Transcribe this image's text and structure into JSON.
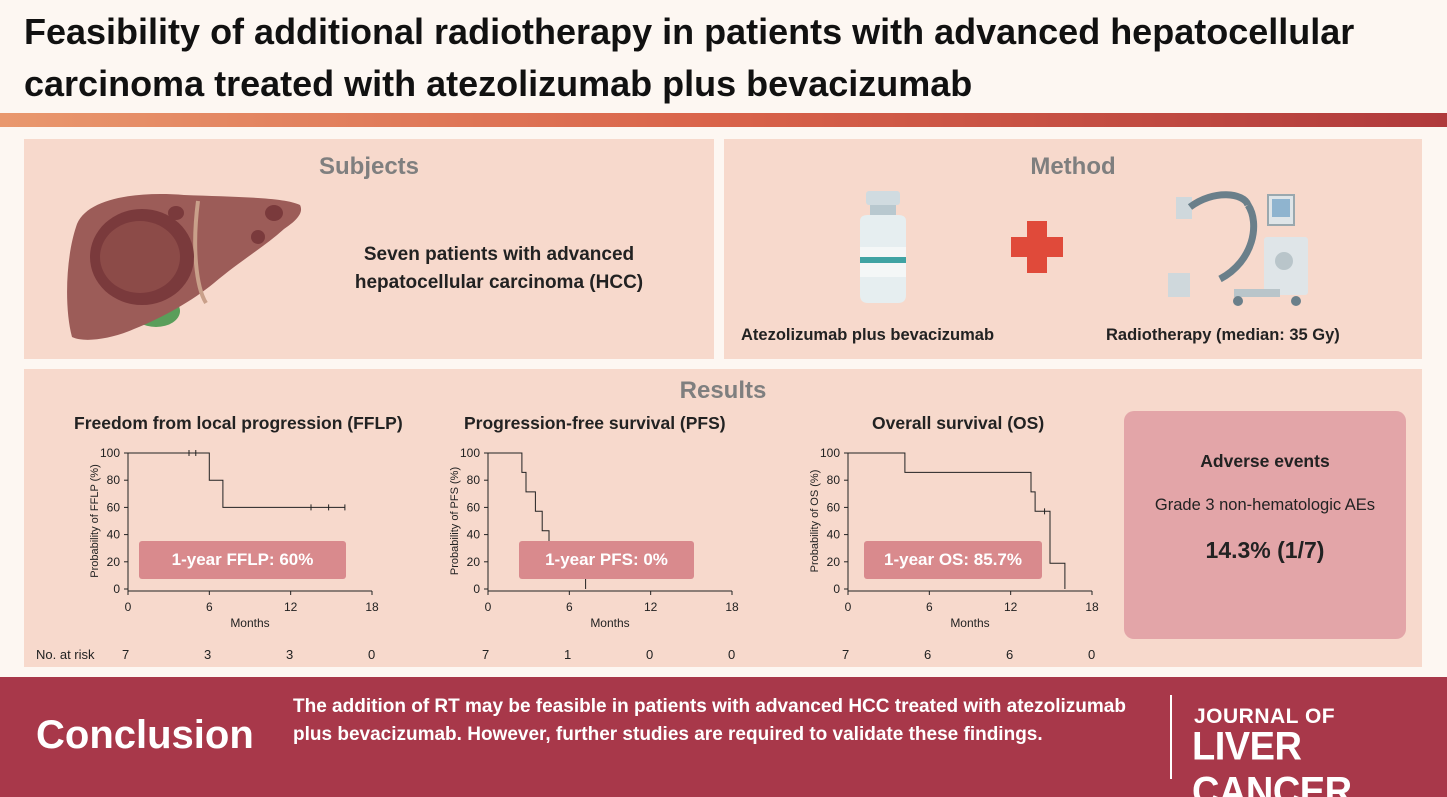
{
  "title": "Feasibility of additional radiotherapy in patients with advanced hepatocellular carcinoma treated with atezolizumab plus bevacizumab",
  "subjects": {
    "heading": "Subjects",
    "text": "Seven patients with advanced hepatocellular carcinoma (HCC)"
  },
  "method": {
    "heading": "Method",
    "drug_caption": "Atezolizumab plus bevacizumab",
    "rt_caption": "Radiotherapy (median: 35 Gy)"
  },
  "results": {
    "heading": "Results",
    "risk_label": "No. at risk",
    "adverse": {
      "title": "Adverse events",
      "subtitle": "Grade 3 non-hematologic AEs",
      "value": "14.3% (1/7)"
    }
  },
  "chart_data": [
    {
      "type": "line",
      "title": "Freedom from local progression (FFLP)",
      "xlabel": "Months",
      "ylabel": "Probability of FFLP (%)",
      "xlim": [
        0,
        18
      ],
      "ylim": [
        0,
        100
      ],
      "xticks": [
        0,
        6,
        12,
        18
      ],
      "yticks": [
        0,
        20,
        40,
        60,
        80,
        100
      ],
      "x": [
        0,
        6,
        6,
        7,
        7,
        16
      ],
      "y": [
        100,
        100,
        80,
        80,
        60,
        60
      ],
      "censored": [
        [
          4.5,
          100
        ],
        [
          5,
          100
        ],
        [
          13.5,
          60
        ],
        [
          14.8,
          60
        ],
        [
          16,
          60
        ]
      ],
      "annotation": "1-year FFLP: 60%",
      "at_risk": [
        "7",
        "3",
        "3",
        "0"
      ]
    },
    {
      "type": "line",
      "title": "Progression-free survival (PFS)",
      "xlabel": "Months",
      "ylabel": "Probability of PFS (%)",
      "xlim": [
        0,
        18
      ],
      "ylim": [
        0,
        100
      ],
      "xticks": [
        0,
        6,
        12,
        18
      ],
      "yticks": [
        0,
        20,
        40,
        60,
        80,
        100
      ],
      "x": [
        0,
        2.5,
        2.5,
        2.8,
        2.8,
        3.5,
        3.5,
        4.0,
        4.0,
        4.5,
        4.5,
        7.2,
        7.2
      ],
      "y": [
        100,
        100,
        85.7,
        85.7,
        71.4,
        71.4,
        57.1,
        57.1,
        42.9,
        42.9,
        28.6,
        28.6,
        0
      ],
      "censored": [],
      "annotation": "1-year PFS: 0%",
      "at_risk": [
        "7",
        "1",
        "0",
        "0"
      ]
    },
    {
      "type": "line",
      "title": "Overall survival (OS)",
      "xlabel": "Months",
      "ylabel": "Probability of OS (%)",
      "xlim": [
        0,
        18
      ],
      "ylim": [
        0,
        100
      ],
      "xticks": [
        0,
        6,
        12,
        18
      ],
      "yticks": [
        0,
        20,
        40,
        60,
        80,
        100
      ],
      "x": [
        0,
        4.2,
        4.2,
        13.5,
        13.5,
        13.8,
        13.8,
        14.9,
        14.9,
        16,
        16
      ],
      "y": [
        100,
        100,
        85.7,
        85.7,
        71.4,
        71.4,
        57.1,
        57.1,
        19,
        19,
        0
      ],
      "censored": [
        [
          14.5,
          57.1
        ]
      ],
      "annotation": "1-year OS: 85.7%",
      "at_risk": [
        "7",
        "6",
        "6",
        "0"
      ]
    }
  ],
  "conclusion": {
    "label": "Conclusion",
    "text": "The addition of RT may be feasible in patients with advanced HCC treated with atezolizumab plus bevacizumab. However, further studies are required to validate these findings.",
    "journal_line1": "JOURNAL OF",
    "journal_line2": "LIVER CANCER"
  },
  "colors": {
    "accent": "#a8384a",
    "panel": "#f7d9cc",
    "stat_box": "#d98a8d",
    "cross": "#e04a3a"
  }
}
